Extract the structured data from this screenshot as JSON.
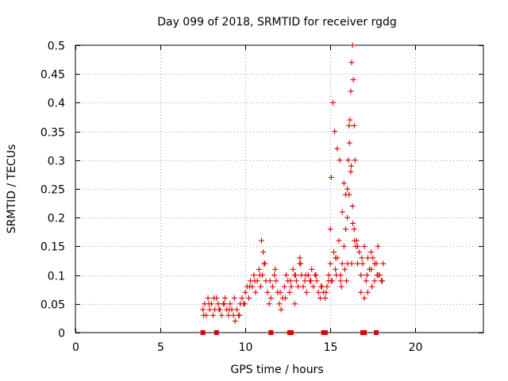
{
  "chart_data": {
    "type": "scatter",
    "title": "Day 099 of 2018, SRMTID for receiver rgdg",
    "xlabel": "GPS time / hours",
    "ylabel": "SRMTID / TECUs",
    "xlim": [
      0,
      24
    ],
    "ylim": [
      0,
      0.5
    ],
    "xticks": [
      0,
      5,
      10,
      15,
      20
    ],
    "xtick_labels": [
      "0",
      "5",
      "10",
      "15",
      "20"
    ],
    "yticks": [
      0,
      0.05,
      0.1,
      0.15,
      0.2,
      0.25,
      0.3,
      0.35,
      0.4,
      0.45,
      0.5
    ],
    "ytick_labels": [
      "0",
      "0.05",
      "0.1",
      "0.15",
      "0.2",
      "0.25",
      "0.3",
      "0.35",
      "0.4",
      "0.45",
      "0.5"
    ],
    "grid": true,
    "marker": "+",
    "color": "#e00000",
    "series": [
      {
        "name": "SRMTID",
        "x": [
          7.5,
          7.6,
          7.7,
          7.8,
          7.9,
          8.0,
          8.1,
          8.2,
          8.3,
          8.4,
          8.5,
          8.6,
          8.7,
          8.8,
          8.9,
          9.0,
          9.1,
          9.2,
          9.3,
          9.4,
          9.5,
          9.6,
          9.7,
          9.8,
          9.9,
          10.0,
          10.1,
          10.2,
          10.3,
          10.4,
          10.5,
          10.6,
          10.7,
          10.8,
          10.9,
          11.0,
          11.1,
          11.2,
          11.3,
          11.4,
          11.5,
          11.6,
          11.7,
          11.8,
          11.9,
          12.0,
          12.1,
          12.2,
          12.3,
          12.4,
          12.5,
          12.6,
          12.7,
          12.8,
          12.9,
          13.0,
          13.1,
          13.2,
          13.3,
          13.4,
          13.5,
          13.6,
          13.7,
          13.8,
          13.9,
          14.0,
          14.1,
          14.2,
          14.3,
          14.4,
          14.5,
          14.6,
          14.7,
          14.8,
          14.9,
          15.0,
          15.1,
          15.2,
          15.3,
          15.4,
          15.5,
          15.6,
          15.7,
          15.8,
          15.9,
          16.0,
          16.1,
          16.2,
          16.3,
          16.4,
          16.5,
          16.6,
          16.7,
          16.8,
          16.9,
          17.0,
          17.1,
          17.2,
          17.3,
          17.4,
          17.5,
          17.6,
          17.7,
          17.8,
          17.9,
          18.0,
          18.1,
          7.55,
          7.85,
          8.15,
          8.45,
          8.75,
          9.05,
          9.35,
          9.65,
          9.95,
          10.25,
          10.55,
          10.85,
          11.15,
          11.45,
          11.75,
          12.05,
          12.35,
          12.65,
          12.95,
          13.25,
          13.55,
          13.85,
          14.15,
          14.45,
          14.75,
          15.05,
          15.35,
          15.65,
          15.95,
          16.25,
          16.55,
          16.85,
          17.15,
          17.45,
          17.75,
          18.05,
          10.95,
          11.05,
          12.9,
          13.2,
          14.9,
          15.0,
          15.15,
          15.25,
          15.4,
          15.55,
          15.7,
          15.8,
          15.9,
          16.0,
          16.05,
          16.1,
          16.15,
          16.2,
          16.25,
          16.3,
          16.35,
          16.4,
          16.45,
          15.05,
          15.3,
          15.6,
          15.85,
          16.02,
          16.12,
          16.22,
          16.32,
          16.42,
          16.6,
          16.8,
          17.0,
          17.2,
          17.4,
          17.6,
          17.8
        ],
        "y": [
          0.04,
          0.05,
          0.03,
          0.06,
          0.04,
          0.05,
          0.03,
          0.04,
          0.06,
          0.05,
          0.04,
          0.03,
          0.05,
          0.06,
          0.04,
          0.03,
          0.05,
          0.04,
          0.03,
          0.02,
          0.04,
          0.03,
          0.05,
          0.06,
          0.05,
          0.07,
          0.08,
          0.06,
          0.09,
          0.08,
          0.1,
          0.07,
          0.09,
          0.11,
          0.08,
          0.1,
          0.12,
          0.09,
          0.07,
          0.05,
          0.06,
          0.08,
          0.1,
          0.09,
          0.07,
          0.05,
          0.04,
          0.06,
          0.08,
          0.1,
          0.09,
          0.07,
          0.08,
          0.11,
          0.1,
          0.09,
          0.08,
          0.12,
          0.1,
          0.08,
          0.09,
          0.07,
          0.1,
          0.09,
          0.11,
          0.08,
          0.1,
          0.09,
          0.07,
          0.06,
          0.08,
          0.07,
          0.06,
          0.08,
          0.1,
          0.12,
          0.09,
          0.14,
          0.11,
          0.13,
          0.16,
          0.09,
          0.12,
          0.15,
          0.18,
          0.2,
          0.24,
          0.28,
          0.22,
          0.18,
          0.15,
          0.12,
          0.14,
          0.1,
          0.12,
          0.15,
          0.09,
          0.07,
          0.11,
          0.14,
          0.13,
          0.09,
          0.12,
          0.15,
          0.1,
          0.09,
          0.12,
          0.03,
          0.05,
          0.06,
          0.04,
          0.05,
          0.04,
          0.06,
          0.03,
          0.05,
          0.08,
          0.09,
          0.1,
          0.12,
          0.09,
          0.11,
          0.07,
          0.06,
          0.09,
          0.1,
          0.12,
          0.1,
          0.09,
          0.1,
          0.08,
          0.07,
          0.09,
          0.1,
          0.08,
          0.09,
          0.12,
          0.16,
          0.13,
          0.1,
          0.08,
          0.1,
          0.09,
          0.16,
          0.14,
          0.05,
          0.13,
          0.09,
          0.18,
          0.4,
          0.35,
          0.32,
          0.3,
          0.21,
          0.26,
          0.24,
          0.25,
          0.3,
          0.36,
          0.37,
          0.42,
          0.47,
          0.5,
          0.44,
          0.36,
          0.3,
          0.27,
          0.13,
          0.1,
          0.11,
          0.12,
          0.33,
          0.29,
          0.19,
          0.16,
          0.15,
          0.07,
          0.06,
          0.13,
          0.11,
          0.12,
          0.1
        ],
        "x_day_markers": [
          7.5,
          8.3,
          11.5,
          12.6,
          12.7,
          14.6,
          14.7,
          16.9,
          17.0,
          17.7
        ]
      }
    ]
  }
}
